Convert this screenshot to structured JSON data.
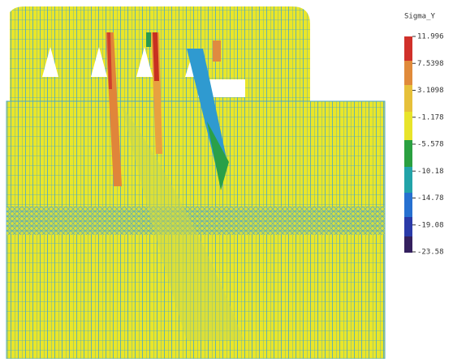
{
  "legend": {
    "title": "Sigma_Y",
    "labels": [
      "11.996",
      "7.5398",
      "3.1098",
      "-1.178",
      "-5.578",
      "-10.18",
      "-14.78",
      "-19.08",
      "-23.58"
    ]
  }
}
